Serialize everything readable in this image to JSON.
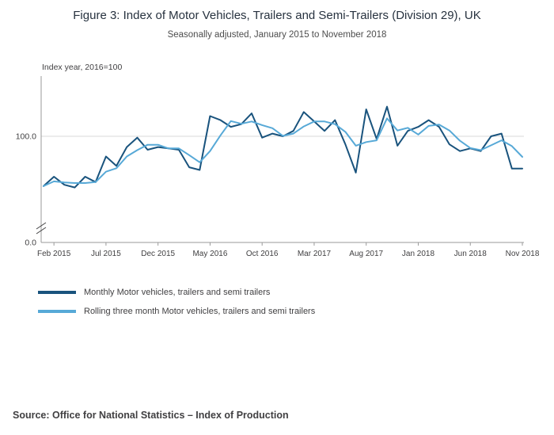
{
  "header": {
    "title": "Figure 3: Index of Motor Vehicles, Trailers and Semi-Trailers (Division 29), UK",
    "subtitle": "Seasonally adjusted, January 2015 to November 2018"
  },
  "source": "Source: Office for National Statistics – Index of Production",
  "chart_data": {
    "type": "line",
    "title": "Figure 3: Index of Motor Vehicles, Trailers and Semi-Trailers (Division 29), UK",
    "subtitle": "Seasonally adjusted, January 2015 to November 2018",
    "ylabel": "Index year, 2016=100",
    "grid": "single horizontal gridline at 100",
    "axis_break": true,
    "legend_position": "below",
    "yticks": [
      {
        "value": 0,
        "label": "0.0"
      },
      {
        "value": 100,
        "label": "100.0"
      }
    ],
    "x_tick_labels": [
      "Feb 2015",
      "Jul 2015",
      "Dec 2015",
      "May 2016",
      "Oct 2016",
      "Mar 2017",
      "Aug 2017",
      "Jan 2018",
      "Jun 2018",
      "Nov 2018"
    ],
    "x_tick_indices": [
      1,
      6,
      11,
      16,
      21,
      26,
      31,
      36,
      41,
      46
    ],
    "categories": [
      "Jan 2015",
      "Feb 2015",
      "Mar 2015",
      "Apr 2015",
      "May 2015",
      "Jun 2015",
      "Jul 2015",
      "Aug 2015",
      "Sep 2015",
      "Oct 2015",
      "Nov 2015",
      "Dec 2015",
      "Jan 2016",
      "Feb 2016",
      "Mar 2016",
      "Apr 2016",
      "May 2016",
      "Jun 2016",
      "Jul 2016",
      "Aug 2016",
      "Sep 2016",
      "Oct 2016",
      "Nov 2016",
      "Dec 2016",
      "Jan 2017",
      "Feb 2017",
      "Mar 2017",
      "Apr 2017",
      "May 2017",
      "Jun 2017",
      "Jul 2017",
      "Aug 2017",
      "Sep 2017",
      "Oct 2017",
      "Nov 2017",
      "Dec 2017",
      "Jan 2018",
      "Feb 2018",
      "Mar 2018",
      "Apr 2018",
      "May 2018",
      "Jun 2018",
      "Jul 2018",
      "Aug 2018",
      "Sep 2018",
      "Oct 2018",
      "Nov 2018"
    ],
    "series": [
      {
        "name": "Monthly Motor vehicles, trailers and semi trailers",
        "color": "#19537d",
        "values": [
          63,
          70,
          64,
          62,
          70,
          66,
          85,
          78,
          92,
          99,
          90,
          92,
          91,
          90,
          77,
          75,
          115,
          112,
          107,
          109,
          117,
          99,
          102,
          100,
          104,
          118,
          111,
          104,
          112,
          94,
          73,
          120,
          98,
          122,
          93,
          104,
          107,
          112,
          107,
          94,
          89,
          91,
          89,
          100,
          102,
          76,
          76
        ]
      },
      {
        "name": "Rolling three month Motor vehicles, trailers and semi trailers",
        "color": "#57a9d7",
        "values": [
          63,
          66.5,
          65.7,
          65.3,
          65.3,
          66,
          73.7,
          76.3,
          85,
          89.7,
          93.7,
          93.7,
          91,
          91,
          86,
          80.7,
          89,
          100.7,
          111.3,
          109.3,
          111,
          108.3,
          106,
          100.3,
          102,
          107.3,
          111,
          111,
          109,
          103.3,
          93,
          95.7,
          97,
          113.3,
          104.3,
          106.3,
          101.3,
          107.7,
          108.7,
          104.3,
          96.7,
          91.3,
          89.7,
          93.3,
          97,
          92.7,
          84.7
        ]
      }
    ]
  }
}
